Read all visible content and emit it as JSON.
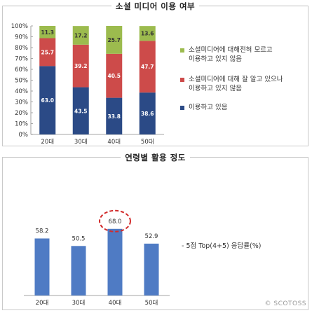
{
  "chart_data": [
    {
      "type": "bar",
      "stacked": true,
      "title": "소셜 미디어 이용 여부",
      "categories": [
        "20대",
        "30대",
        "40대",
        "50대"
      ],
      "ylim": [
        0,
        100
      ],
      "yticks": [
        "0%",
        "10%",
        "20%",
        "30%",
        "40%",
        "50%",
        "60%",
        "70%",
        "80%",
        "90%",
        "100%"
      ],
      "series": [
        {
          "name": "이용하고 있음",
          "values": [
            63.0,
            43.5,
            33.8,
            38.6
          ],
          "labels": [
            "63.0",
            "43.5",
            "33.8",
            "38.6"
          ],
          "color": "#2b4a86"
        },
        {
          "name": "소셜미디어에 대해 잘 알고 있으나\n이용하고 있지 않음",
          "values": [
            25.7,
            39.2,
            40.5,
            47.7
          ],
          "labels": [
            "25.7",
            "39.2",
            "40.5",
            "47.7"
          ],
          "color": "#cd4b4a"
        },
        {
          "name": "소셜미디어에 대해전혀 모르고\n이용하고 있지 않음",
          "values": [
            11.3,
            17.2,
            25.7,
            13.6
          ],
          "labels": [
            "11.3",
            "17.2",
            "25.7",
            "13.6"
          ],
          "color": "#9cbb4e"
        }
      ],
      "legend_order": [
        2,
        1,
        0
      ],
      "legend_position": "right"
    },
    {
      "type": "bar",
      "title": "연령별 활용 정도",
      "categories": [
        "20대",
        "30대",
        "40대",
        "50대"
      ],
      "values": [
        58.2,
        50.5,
        68.0,
        52.9
      ],
      "labels": [
        "58.2",
        "50.5",
        "68.0",
        "52.9"
      ],
      "highlight_index": 2,
      "color": "#4f7bc4",
      "note": "- 5점 Top(4+5) 응답률(%)"
    }
  ],
  "watermark": "© SCOTOSS"
}
